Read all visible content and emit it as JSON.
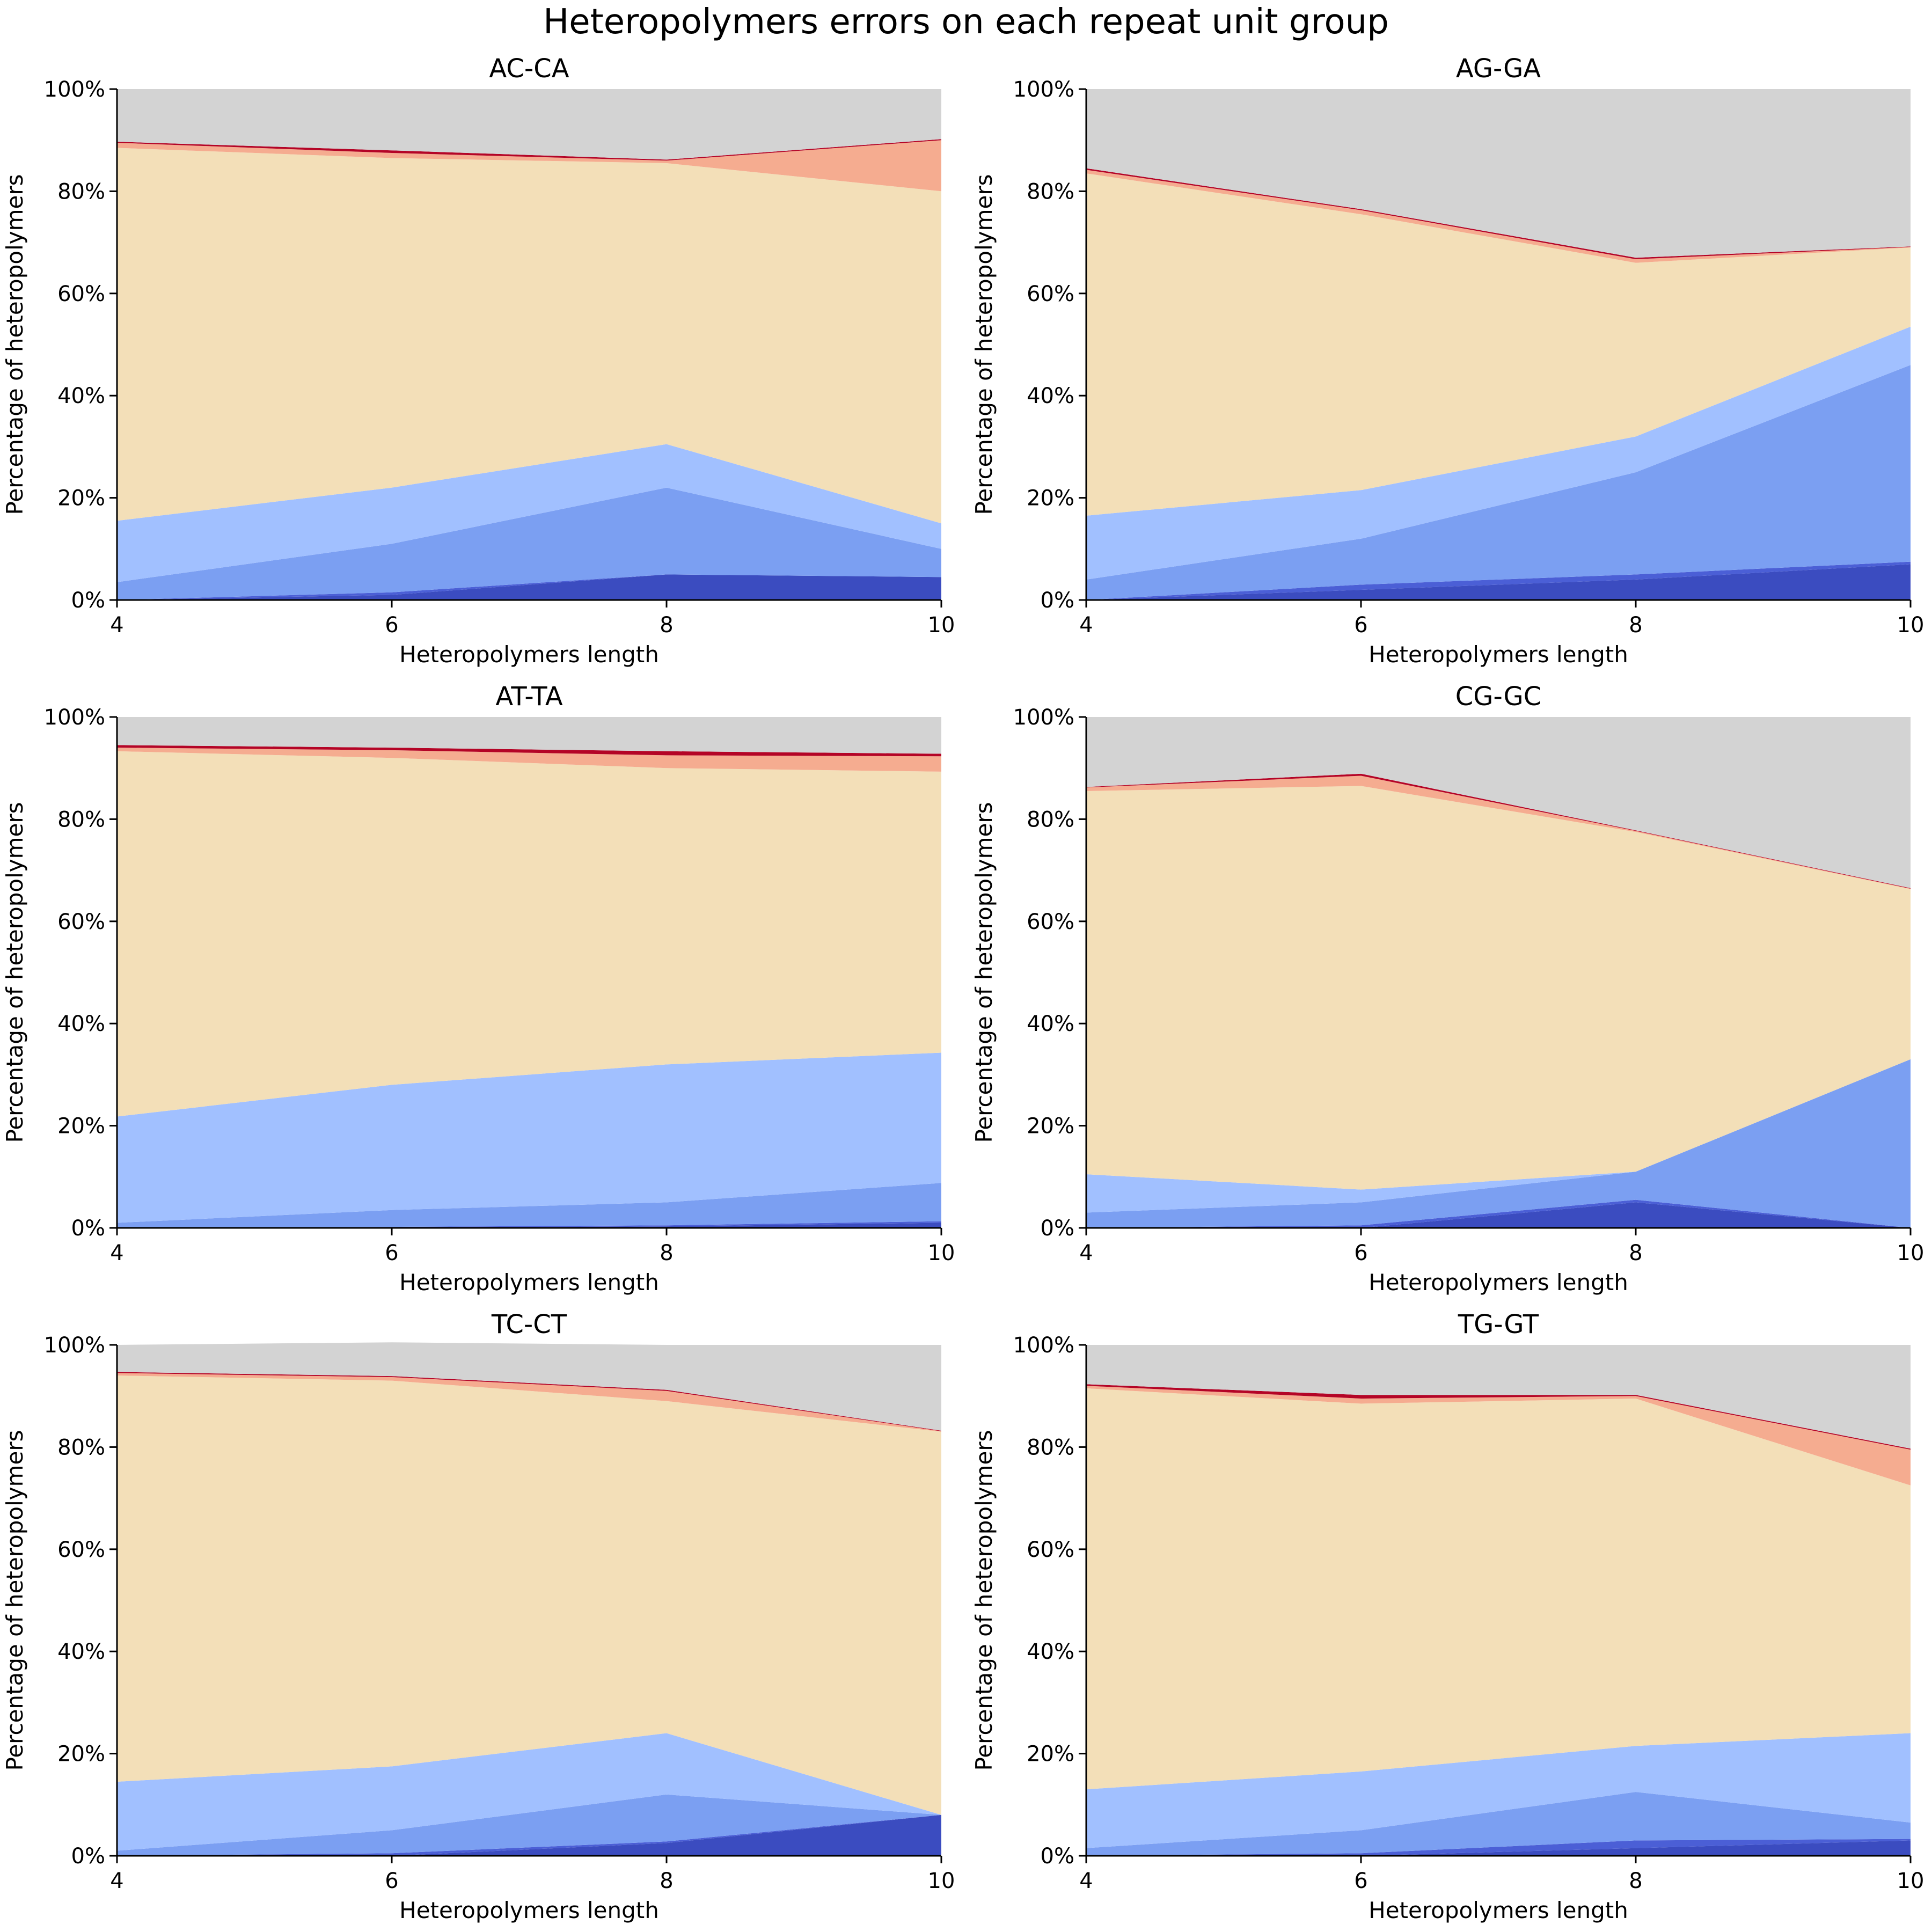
{
  "figure": {
    "title": "Heteropolymers errors on each repeat unit group"
  },
  "colors": {
    "background": "#ffffff",
    "axis": "#000000",
    "layers": [
      "#3b4cc0",
      "#4b5fd6",
      "#7b9ff2",
      "#a1c0ff",
      "#f3dfb8",
      "#f5ac90",
      "#b40426",
      "#d3d3d3"
    ]
  },
  "chart_data": [
    {
      "type": "area",
      "stacked": true,
      "title": "AC-CA",
      "xlabel": "Heteropolymers length",
      "ylabel": "Percentage of heteropolymers",
      "x": [
        4,
        6,
        8,
        10
      ],
      "xticks": [
        "4",
        "6",
        "8",
        "10"
      ],
      "xlim": [
        4,
        10
      ],
      "ylim": [
        0,
        100
      ],
      "yticks": [
        "0%",
        "20%",
        "40%",
        "60%",
        "80%",
        "100%"
      ],
      "grid": false,
      "legend": false,
      "series": [
        {
          "values": [
            0,
            1,
            5,
            4.5
          ]
        },
        {
          "values": [
            0,
            0.5,
            0,
            0
          ]
        },
        {
          "values": [
            3.5,
            9.5,
            17,
            5.5
          ]
        },
        {
          "values": [
            12,
            11,
            8.5,
            5
          ]
        },
        {
          "values": [
            73,
            64.5,
            55,
            65
          ]
        },
        {
          "values": [
            1,
            1,
            0.5,
            10
          ]
        },
        {
          "values": [
            0.2,
            0.5,
            0.2,
            0.2
          ]
        },
        {
          "values": [
            10.3,
            12,
            13.8,
            9.8
          ]
        }
      ]
    },
    {
      "type": "area",
      "stacked": true,
      "title": "AG-GA",
      "xlabel": "Heteropolymers length",
      "ylabel": "Percentage of heteropolymers",
      "x": [
        4,
        6,
        8,
        10
      ],
      "xticks": [
        "4",
        "6",
        "8",
        "10"
      ],
      "xlim": [
        4,
        10
      ],
      "ylim": [
        0,
        100
      ],
      "yticks": [
        "0%",
        "20%",
        "40%",
        "60%",
        "80%",
        "100%"
      ],
      "grid": false,
      "legend": false,
      "series": [
        {
          "values": [
            0,
            2,
            4,
            7
          ]
        },
        {
          "values": [
            0,
            1,
            1,
            0.5
          ]
        },
        {
          "values": [
            4,
            9,
            20,
            38.5
          ]
        },
        {
          "values": [
            12.5,
            9.5,
            7,
            7.5
          ]
        },
        {
          "values": [
            67,
            54,
            34,
            15.5
          ]
        },
        {
          "values": [
            0.7,
            0.8,
            0.7,
            0.1
          ]
        },
        {
          "values": [
            0.3,
            0.2,
            0.3,
            0.1
          ]
        },
        {
          "values": [
            15.5,
            23.5,
            33,
            30.8
          ]
        }
      ]
    },
    {
      "type": "area",
      "stacked": true,
      "title": "AT-TA",
      "xlabel": "Heteropolymers length",
      "ylabel": "Percentage of heteropolymers",
      "x": [
        4,
        6,
        8,
        10
      ],
      "xticks": [
        "4",
        "6",
        "8",
        "10"
      ],
      "xlim": [
        4,
        10
      ],
      "ylim": [
        0,
        100
      ],
      "yticks": [
        "0%",
        "20%",
        "40%",
        "60%",
        "80%",
        "100%"
      ],
      "grid": false,
      "legend": false,
      "series": [
        {
          "values": [
            0,
            0,
            0.3,
            1
          ]
        },
        {
          "values": [
            0,
            0.2,
            0.2,
            0.3
          ]
        },
        {
          "values": [
            1,
            3.3,
            4.5,
            7.5
          ]
        },
        {
          "values": [
            20.8,
            24.5,
            27,
            25.5
          ]
        },
        {
          "values": [
            71.5,
            64,
            58,
            55
          ]
        },
        {
          "values": [
            0.7,
            1.5,
            2.5,
            3
          ]
        },
        {
          "values": [
            0.5,
            0.5,
            0.8,
            0.5
          ]
        },
        {
          "values": [
            5.5,
            6,
            6.7,
            7.2
          ]
        }
      ]
    },
    {
      "type": "area",
      "stacked": true,
      "title": "CG-GC",
      "xlabel": "Heteropolymers length",
      "ylabel": "Percentage of heteropolymers",
      "x": [
        4,
        6,
        8,
        10
      ],
      "xticks": [
        "4",
        "6",
        "8",
        "10"
      ],
      "xlim": [
        4,
        10
      ],
      "ylim": [
        0,
        100
      ],
      "yticks": [
        "0%",
        "20%",
        "40%",
        "60%",
        "80%",
        "100%"
      ],
      "grid": false,
      "legend": false,
      "series": [
        {
          "values": [
            0,
            0,
            5,
            0
          ]
        },
        {
          "values": [
            0,
            0.5,
            0.5,
            0
          ]
        },
        {
          "values": [
            3,
            4.5,
            5.5,
            33
          ]
        },
        {
          "values": [
            7.5,
            2.5,
            0,
            0
          ]
        },
        {
          "values": [
            75,
            79,
            66.5,
            33.3
          ]
        },
        {
          "values": [
            0.7,
            2,
            0.2,
            0.1
          ]
        },
        {
          "values": [
            0.1,
            0.4,
            0.1,
            0.1
          ]
        },
        {
          "values": [
            13.7,
            11.1,
            22.2,
            33.5
          ]
        }
      ]
    },
    {
      "type": "area",
      "stacked": true,
      "title": "TC-CT",
      "xlabel": "Heteropolymers length",
      "ylabel": "Percentage of heteropolymers",
      "x": [
        4,
        6,
        8,
        10
      ],
      "xticks": [
        "4",
        "6",
        "8",
        "10"
      ],
      "xlim": [
        4,
        10
      ],
      "ylim": [
        0,
        100
      ],
      "yticks": [
        "0%",
        "20%",
        "40%",
        "60%",
        "80%",
        "100%"
      ],
      "grid": false,
      "legend": false,
      "series": [
        {
          "values": [
            0,
            0,
            2.5,
            8
          ]
        },
        {
          "values": [
            0,
            0.5,
            0.3,
            0
          ]
        },
        {
          "values": [
            1,
            4.5,
            9.2,
            0
          ]
        },
        {
          "values": [
            13.5,
            12.5,
            12,
            0
          ]
        },
        {
          "values": [
            79.5,
            75.5,
            65,
            75
          ]
        },
        {
          "values": [
            0.5,
            0.7,
            2,
            0.1
          ]
        },
        {
          "values": [
            0.2,
            0.2,
            0.2,
            0.1
          ]
        },
        {
          "values": [
            5.3,
            6.6,
            8.8,
            16.8
          ]
        }
      ]
    },
    {
      "type": "area",
      "stacked": true,
      "title": "TG-GT",
      "xlabel": "Heteropolymers length",
      "ylabel": "Percentage of heteropolymers",
      "x": [
        4,
        6,
        8,
        10
      ],
      "xticks": [
        "4",
        "6",
        "8",
        "10"
      ],
      "xlim": [
        4,
        10
      ],
      "ylim": [
        0,
        100
      ],
      "yticks": [
        "0%",
        "20%",
        "40%",
        "60%",
        "80%",
        "100%"
      ],
      "grid": false,
      "legend": false,
      "series": [
        {
          "values": [
            0,
            0,
            1.5,
            3
          ]
        },
        {
          "values": [
            0,
            0.5,
            1.5,
            0.3
          ]
        },
        {
          "values": [
            1.5,
            4.5,
            9.5,
            3.2
          ]
        },
        {
          "values": [
            11.5,
            11.5,
            9,
            17.5
          ]
        },
        {
          "values": [
            78.5,
            72,
            68,
            48.5
          ]
        },
        {
          "values": [
            0.5,
            1,
            0.5,
            7
          ]
        },
        {
          "values": [
            0.3,
            0.7,
            0.2,
            0.2
          ]
        },
        {
          "values": [
            7.7,
            9.8,
            9.8,
            20.3
          ]
        }
      ]
    }
  ]
}
